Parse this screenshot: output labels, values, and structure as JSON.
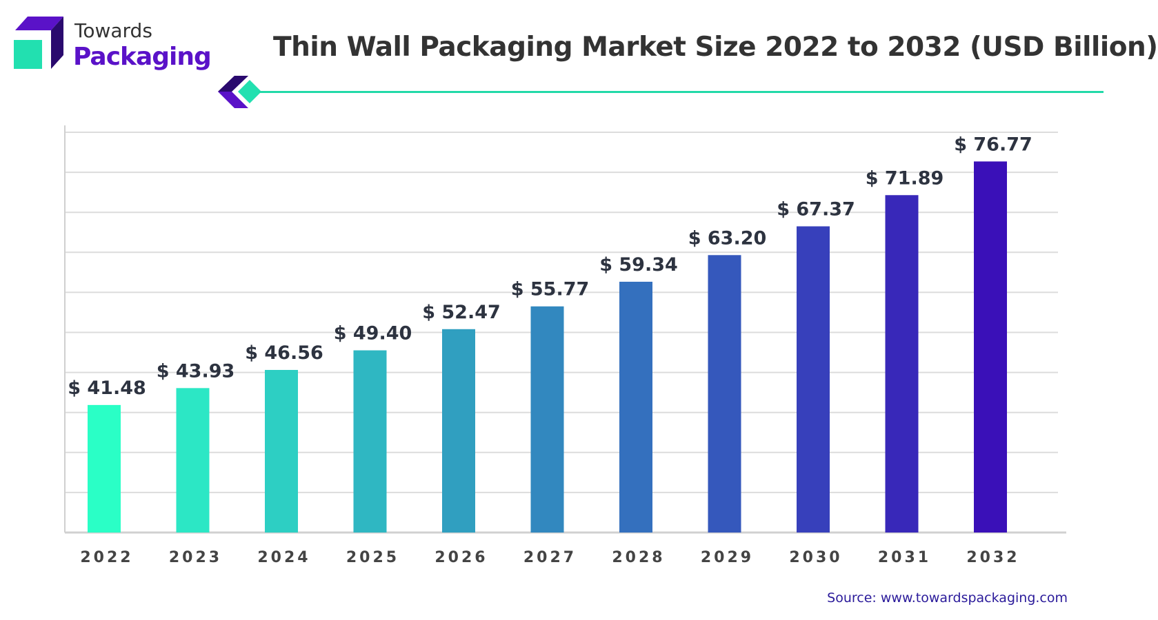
{
  "brand": {
    "line1": "Towards",
    "line2": "Packaging"
  },
  "colors": {
    "teal": "#22e0b0",
    "purple": "#5a12c8",
    "dark_purple": "#2a0a6e",
    "bar_start": "#2affc6",
    "bar_end": "#3a10b8",
    "line": "#22d9a8"
  },
  "source": "Source: www.towardspackaging.com",
  "chart_data": {
    "type": "bar",
    "title": "Thin Wall Packaging Market Size 2022 to 2032 (USD Billion)",
    "xlabel": "",
    "ylabel": "",
    "categories": [
      "2022",
      "2023",
      "2024",
      "2025",
      "2026",
      "2027",
      "2028",
      "2029",
      "2030",
      "2031",
      "2032"
    ],
    "values": [
      41.48,
      43.93,
      46.56,
      49.4,
      52.47,
      55.77,
      59.34,
      63.2,
      67.37,
      71.89,
      76.77
    ],
    "data_labels": [
      "$ 41.48",
      "$ 43.93",
      "$ 46.56",
      "$ 49.40",
      "$ 52.47",
      "$ 55.77",
      "$ 59.34",
      "$ 63.20",
      "$ 67.37",
      "$ 71.89",
      "$ 76.77"
    ],
    "ylim": [
      23,
      81
    ],
    "grid": true,
    "y_tick_labels_shown": false
  }
}
